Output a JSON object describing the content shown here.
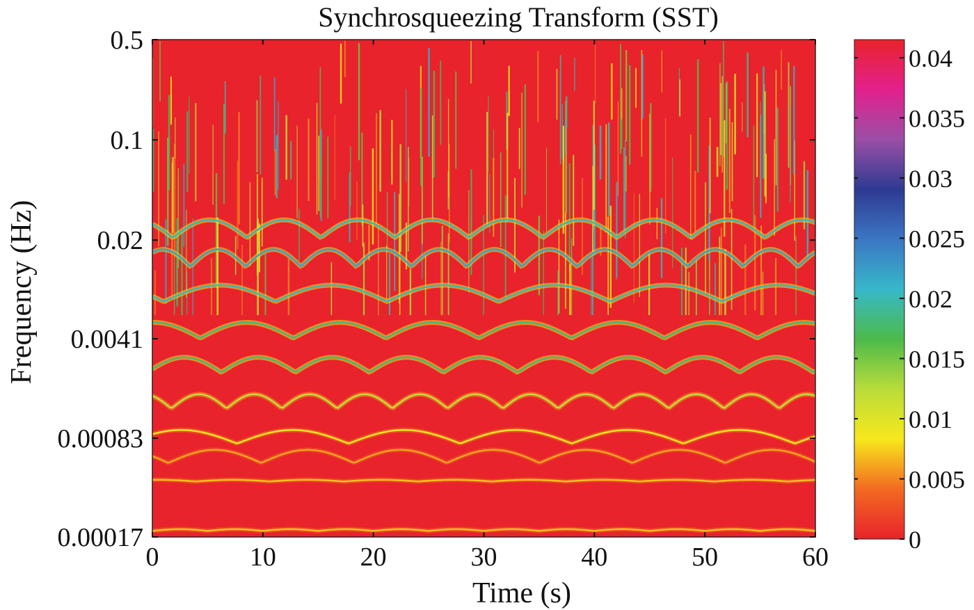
{
  "chart_data": {
    "type": "heatmap",
    "title": "Synchrosqueezing Transform (SST)",
    "xlabel": "Time (s)",
    "ylabel": "Frequency (Hz)",
    "x_ticks": [
      0,
      10,
      20,
      30,
      40,
      50,
      60
    ],
    "xlim": [
      0,
      60
    ],
    "y_scale": "log",
    "y_ticks": [
      0.5,
      0.1,
      0.02,
      0.0041,
      0.00083,
      0.00017
    ],
    "y_tick_labels": [
      "0.5",
      "0.1",
      "0.02",
      "0.0041",
      "0.00083",
      "0.00017"
    ],
    "ylim": [
      0.00017,
      0.5
    ],
    "grid": false,
    "colorbar": {
      "ticks": [
        0,
        0.005,
        0.01,
        0.015,
        0.02,
        0.025,
        0.03,
        0.035,
        0.04
      ],
      "tick_labels": [
        "0",
        "0.005",
        "0.01",
        "0.015",
        "0.02",
        "0.025",
        "0.03",
        "0.035",
        "0.04"
      ],
      "range": [
        0,
        0.0415
      ],
      "placement": "right",
      "colormap": [
        "#e8232b",
        "#f26a21",
        "#f7e81c",
        "#b9dc3a",
        "#4cba4a",
        "#37b8c9",
        "#3b76c4",
        "#2e3a92",
        "#9a4fa6",
        "#e3208c",
        "#e8232b"
      ]
    },
    "background_value": 0,
    "ridges": [
      {
        "freq_hz": 0.00019,
        "level": 0.007
      },
      {
        "freq_hz": 0.00042,
        "level": 0.007
      },
      {
        "freq_hz": 0.00062,
        "level": 0.006
      },
      {
        "freq_hz": 0.00085,
        "level": 0.009
      },
      {
        "freq_hz": 0.0015,
        "level": 0.012
      },
      {
        "freq_hz": 0.0027,
        "level": 0.018
      },
      {
        "freq_hz": 0.0047,
        "level": 0.018
      },
      {
        "freq_hz": 0.0085,
        "level": 0.02
      },
      {
        "freq_hz": 0.015,
        "level": 0.022
      },
      {
        "freq_hz": 0.024,
        "level": 0.02
      }
    ]
  }
}
